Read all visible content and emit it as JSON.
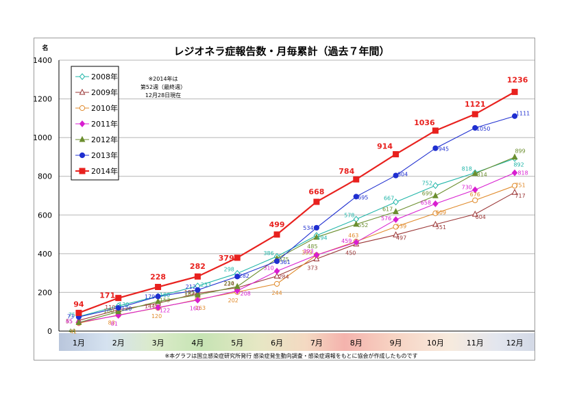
{
  "chart_data": {
    "type": "line",
    "title": "レジオネラ症報告数・月毎累計（過去７年間）",
    "ylabel": "名",
    "ylim": [
      0,
      1400
    ],
    "yticks": [
      0,
      200,
      400,
      600,
      800,
      1000,
      1200,
      1400
    ],
    "categories": [
      "1月",
      "2月",
      "3月",
      "4月",
      "5月",
      "6月",
      "7月",
      "8月",
      "9月",
      "10月",
      "11月",
      "12月"
    ],
    "grid": true,
    "legend": "top-left",
    "note": [
      "※2014年は",
      "第52週（最終週）",
      "12月28日現在"
    ],
    "footnote": "※本グラフは国立感染症研究所発行 感染症発生動向調査・感染症週報をもとに協会が作成したものです",
    "series": [
      {
        "name": "2008年",
        "color": "#1fb5a8",
        "marker": "diamond-open",
        "values": [
          75,
          130,
          180,
          233,
          298,
          386,
          494,
          578,
          667,
          752,
          818,
          892
        ]
      },
      {
        "name": "2009年",
        "color": "#9a3535",
        "marker": "triangle-open",
        "values": [
          55,
          110,
          144,
          195,
          224,
          284,
          373,
          450,
          497,
          551,
          604,
          717
        ]
      },
      {
        "name": "2010年",
        "color": "#e08a2a",
        "marker": "circle-open",
        "values": [
          41,
          83,
          120,
          163,
          202,
          244,
          393,
          463,
          539,
          609,
          676,
          751
        ]
      },
      {
        "name": "2011年",
        "color": "#d81fd0",
        "marker": "diamond",
        "values": [
          45,
          81,
          122,
          160,
          208,
          310,
          393,
          459,
          576,
          658,
          730,
          818
        ]
      },
      {
        "name": "2012年",
        "color": "#6b8e2e",
        "marker": "triangle",
        "values": [
          44,
          100,
          153,
          187,
          230,
          375,
          485,
          552,
          617,
          699,
          814,
          899
        ]
      },
      {
        "name": "2013年",
        "color": "#1f2fd0",
        "marker": "circle",
        "values": [
          73,
          120,
          179,
          212,
          282,
          361,
          534,
          695,
          804,
          945,
          1050,
          1111
        ]
      },
      {
        "name": "2014年",
        "color": "#e8211e",
        "marker": "square",
        "values": [
          94,
          171,
          228,
          282,
          379,
          499,
          668,
          784,
          914,
          1036,
          1121,
          1236
        ]
      }
    ]
  }
}
